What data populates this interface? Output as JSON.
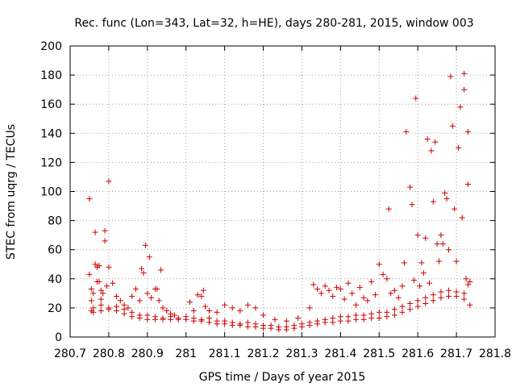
{
  "chart_data": {
    "type": "scatter",
    "title": "Rec. func (Lon=343, Lat=32, h=HE), days 280-281, 2015, window 003",
    "xlabel": "GPS time / Days of year 2015",
    "ylabel": "STEC from uqrg / TECUs",
    "xlim": [
      280.7,
      281.8
    ],
    "ylim": [
      0,
      200
    ],
    "xticks": [
      "280.7",
      "280.8",
      "280.9",
      "281",
      "281.1",
      "281.2",
      "281.3",
      "281.4",
      "281.5",
      "281.6",
      "281.7",
      "281.8"
    ],
    "yticks": [
      "0",
      "20",
      "40",
      "60",
      "80",
      "100",
      "120",
      "140",
      "160",
      "180",
      "200"
    ],
    "grid": true,
    "marker": "plus",
    "color": "#cc0000",
    "points": [
      [
        280.75,
        95
      ],
      [
        280.75,
        43
      ],
      [
        280.755,
        33
      ],
      [
        280.755,
        25
      ],
      [
        280.755,
        18
      ],
      [
        280.76,
        30
      ],
      [
        280.765,
        72
      ],
      [
        280.765,
        50
      ],
      [
        280.77,
        48
      ],
      [
        280.77,
        38
      ],
      [
        280.775,
        49
      ],
      [
        280.775,
        38
      ],
      [
        280.78,
        32
      ],
      [
        280.78,
        26
      ],
      [
        280.785,
        30
      ],
      [
        280.79,
        73
      ],
      [
        280.79,
        66
      ],
      [
        280.795,
        35
      ],
      [
        280.8,
        107
      ],
      [
        280.8,
        48
      ],
      [
        280.81,
        37
      ],
      [
        280.82,
        28
      ],
      [
        280.83,
        25
      ],
      [
        280.84,
        22
      ],
      [
        280.85,
        20
      ],
      [
        280.86,
        28
      ],
      [
        280.87,
        33
      ],
      [
        280.88,
        25
      ],
      [
        280.885,
        47
      ],
      [
        280.89,
        44
      ],
      [
        280.895,
        63
      ],
      [
        280.9,
        30
      ],
      [
        280.905,
        55
      ],
      [
        280.91,
        27
      ],
      [
        280.92,
        33
      ],
      [
        280.925,
        33
      ],
      [
        280.93,
        25
      ],
      [
        280.935,
        46
      ],
      [
        280.94,
        20
      ],
      [
        280.95,
        18
      ],
      [
        280.96,
        16
      ],
      [
        280.97,
        15
      ],
      [
        281.01,
        24
      ],
      [
        281.02,
        18
      ],
      [
        281.03,
        29
      ],
      [
        281.04,
        28
      ],
      [
        281.045,
        32
      ],
      [
        281.05,
        21
      ],
      [
        281.06,
        18
      ],
      [
        281.08,
        17
      ],
      [
        281.1,
        22
      ],
      [
        281.12,
        20
      ],
      [
        281.14,
        18
      ],
      [
        281.16,
        22
      ],
      [
        281.18,
        20
      ],
      [
        281.2,
        15
      ],
      [
        281.23,
        12
      ],
      [
        281.26,
        11
      ],
      [
        281.29,
        13
      ],
      [
        281.32,
        20
      ],
      [
        281.33,
        36
      ],
      [
        281.34,
        33
      ],
      [
        281.35,
        30
      ],
      [
        281.36,
        35
      ],
      [
        281.37,
        32
      ],
      [
        281.38,
        28
      ],
      [
        281.39,
        34
      ],
      [
        281.4,
        33
      ],
      [
        281.41,
        26
      ],
      [
        281.42,
        37
      ],
      [
        281.43,
        30
      ],
      [
        281.44,
        22
      ],
      [
        281.45,
        34
      ],
      [
        281.46,
        27
      ],
      [
        281.47,
        25
      ],
      [
        281.48,
        38
      ],
      [
        281.49,
        29
      ],
      [
        281.5,
        50
      ],
      [
        281.51,
        43
      ],
      [
        281.52,
        40
      ],
      [
        281.525,
        88
      ],
      [
        281.53,
        30
      ],
      [
        281.54,
        32
      ],
      [
        281.55,
        27
      ],
      [
        281.56,
        35
      ],
      [
        281.565,
        51
      ],
      [
        281.57,
        141
      ],
      [
        281.58,
        103
      ],
      [
        281.585,
        91
      ],
      [
        281.59,
        39
      ],
      [
        281.595,
        164
      ],
      [
        281.6,
        70
      ],
      [
        281.605,
        35
      ],
      [
        281.61,
        51
      ],
      [
        281.615,
        44
      ],
      [
        281.62,
        68
      ],
      [
        281.625,
        136
      ],
      [
        281.63,
        37
      ],
      [
        281.635,
        128
      ],
      [
        281.64,
        93
      ],
      [
        281.645,
        134
      ],
      [
        281.65,
        64
      ],
      [
        281.655,
        52
      ],
      [
        281.66,
        70
      ],
      [
        281.665,
        64
      ],
      [
        281.67,
        99
      ],
      [
        281.675,
        95
      ],
      [
        281.68,
        60
      ],
      [
        281.685,
        179
      ],
      [
        281.69,
        145
      ],
      [
        281.695,
        88
      ],
      [
        281.7,
        52
      ],
      [
        281.705,
        130
      ],
      [
        281.71,
        158
      ],
      [
        281.715,
        82
      ],
      [
        281.72,
        181
      ],
      [
        281.72,
        170
      ],
      [
        281.725,
        40
      ],
      [
        281.73,
        141
      ],
      [
        281.73,
        105
      ],
      [
        281.73,
        36
      ],
      [
        281.735,
        38
      ],
      [
        281.735,
        22
      ],
      [
        280.76,
        17
      ],
      [
        280.78,
        18
      ],
      [
        280.8,
        20
      ],
      [
        280.82,
        18
      ],
      [
        280.84,
        16
      ],
      [
        280.86,
        14
      ],
      [
        280.88,
        13
      ],
      [
        280.9,
        12
      ],
      [
        280.92,
        12
      ],
      [
        280.94,
        12
      ],
      [
        280.96,
        12
      ],
      [
        280.98,
        12
      ],
      [
        281.0,
        12
      ],
      [
        281.02,
        11
      ],
      [
        281.04,
        11
      ],
      [
        281.06,
        10
      ],
      [
        281.08,
        9
      ],
      [
        281.1,
        9
      ],
      [
        281.12,
        8
      ],
      [
        281.14,
        8
      ],
      [
        281.16,
        7
      ],
      [
        281.18,
        7
      ],
      [
        281.2,
        6
      ],
      [
        281.22,
        6
      ],
      [
        281.24,
        5
      ],
      [
        281.26,
        5
      ],
      [
        281.28,
        6
      ],
      [
        281.3,
        7
      ],
      [
        281.32,
        8
      ],
      [
        281.34,
        9
      ],
      [
        281.36,
        10
      ],
      [
        281.38,
        10
      ],
      [
        281.4,
        11
      ],
      [
        281.42,
        11
      ],
      [
        281.44,
        12
      ],
      [
        281.46,
        12
      ],
      [
        281.48,
        13
      ],
      [
        281.5,
        13
      ],
      [
        281.52,
        14
      ],
      [
        281.54,
        15
      ],
      [
        281.56,
        17
      ],
      [
        281.58,
        19
      ],
      [
        281.6,
        21
      ],
      [
        281.62,
        23
      ],
      [
        281.64,
        25
      ],
      [
        281.66,
        27
      ],
      [
        281.68,
        28
      ],
      [
        281.7,
        28
      ],
      [
        281.72,
        26
      ],
      [
        280.76,
        20
      ],
      [
        280.78,
        22
      ],
      [
        280.8,
        19
      ],
      [
        280.82,
        21
      ],
      [
        280.84,
        19
      ],
      [
        280.86,
        17
      ],
      [
        280.88,
        15
      ],
      [
        280.9,
        15
      ],
      [
        280.92,
        14
      ],
      [
        280.94,
        13
      ],
      [
        280.96,
        14
      ],
      [
        280.98,
        13
      ],
      [
        281.0,
        14
      ],
      [
        281.02,
        13
      ],
      [
        281.04,
        12
      ],
      [
        281.06,
        13
      ],
      [
        281.08,
        11
      ],
      [
        281.1,
        11
      ],
      [
        281.12,
        10
      ],
      [
        281.14,
        9
      ],
      [
        281.16,
        10
      ],
      [
        281.18,
        9
      ],
      [
        281.2,
        8
      ],
      [
        281.22,
        8
      ],
      [
        281.24,
        7
      ],
      [
        281.26,
        7
      ],
      [
        281.28,
        8
      ],
      [
        281.3,
        9
      ],
      [
        281.32,
        10
      ],
      [
        281.34,
        11
      ],
      [
        281.36,
        12
      ],
      [
        281.38,
        13
      ],
      [
        281.4,
        14
      ],
      [
        281.42,
        14
      ],
      [
        281.44,
        15
      ],
      [
        281.46,
        15
      ],
      [
        281.48,
        16
      ],
      [
        281.5,
        17
      ],
      [
        281.52,
        17
      ],
      [
        281.54,
        19
      ],
      [
        281.56,
        21
      ],
      [
        281.58,
        23
      ],
      [
        281.6,
        25
      ],
      [
        281.62,
        27
      ],
      [
        281.64,
        29
      ],
      [
        281.66,
        31
      ],
      [
        281.68,
        32
      ],
      [
        281.7,
        31
      ],
      [
        281.72,
        30
      ]
    ]
  }
}
